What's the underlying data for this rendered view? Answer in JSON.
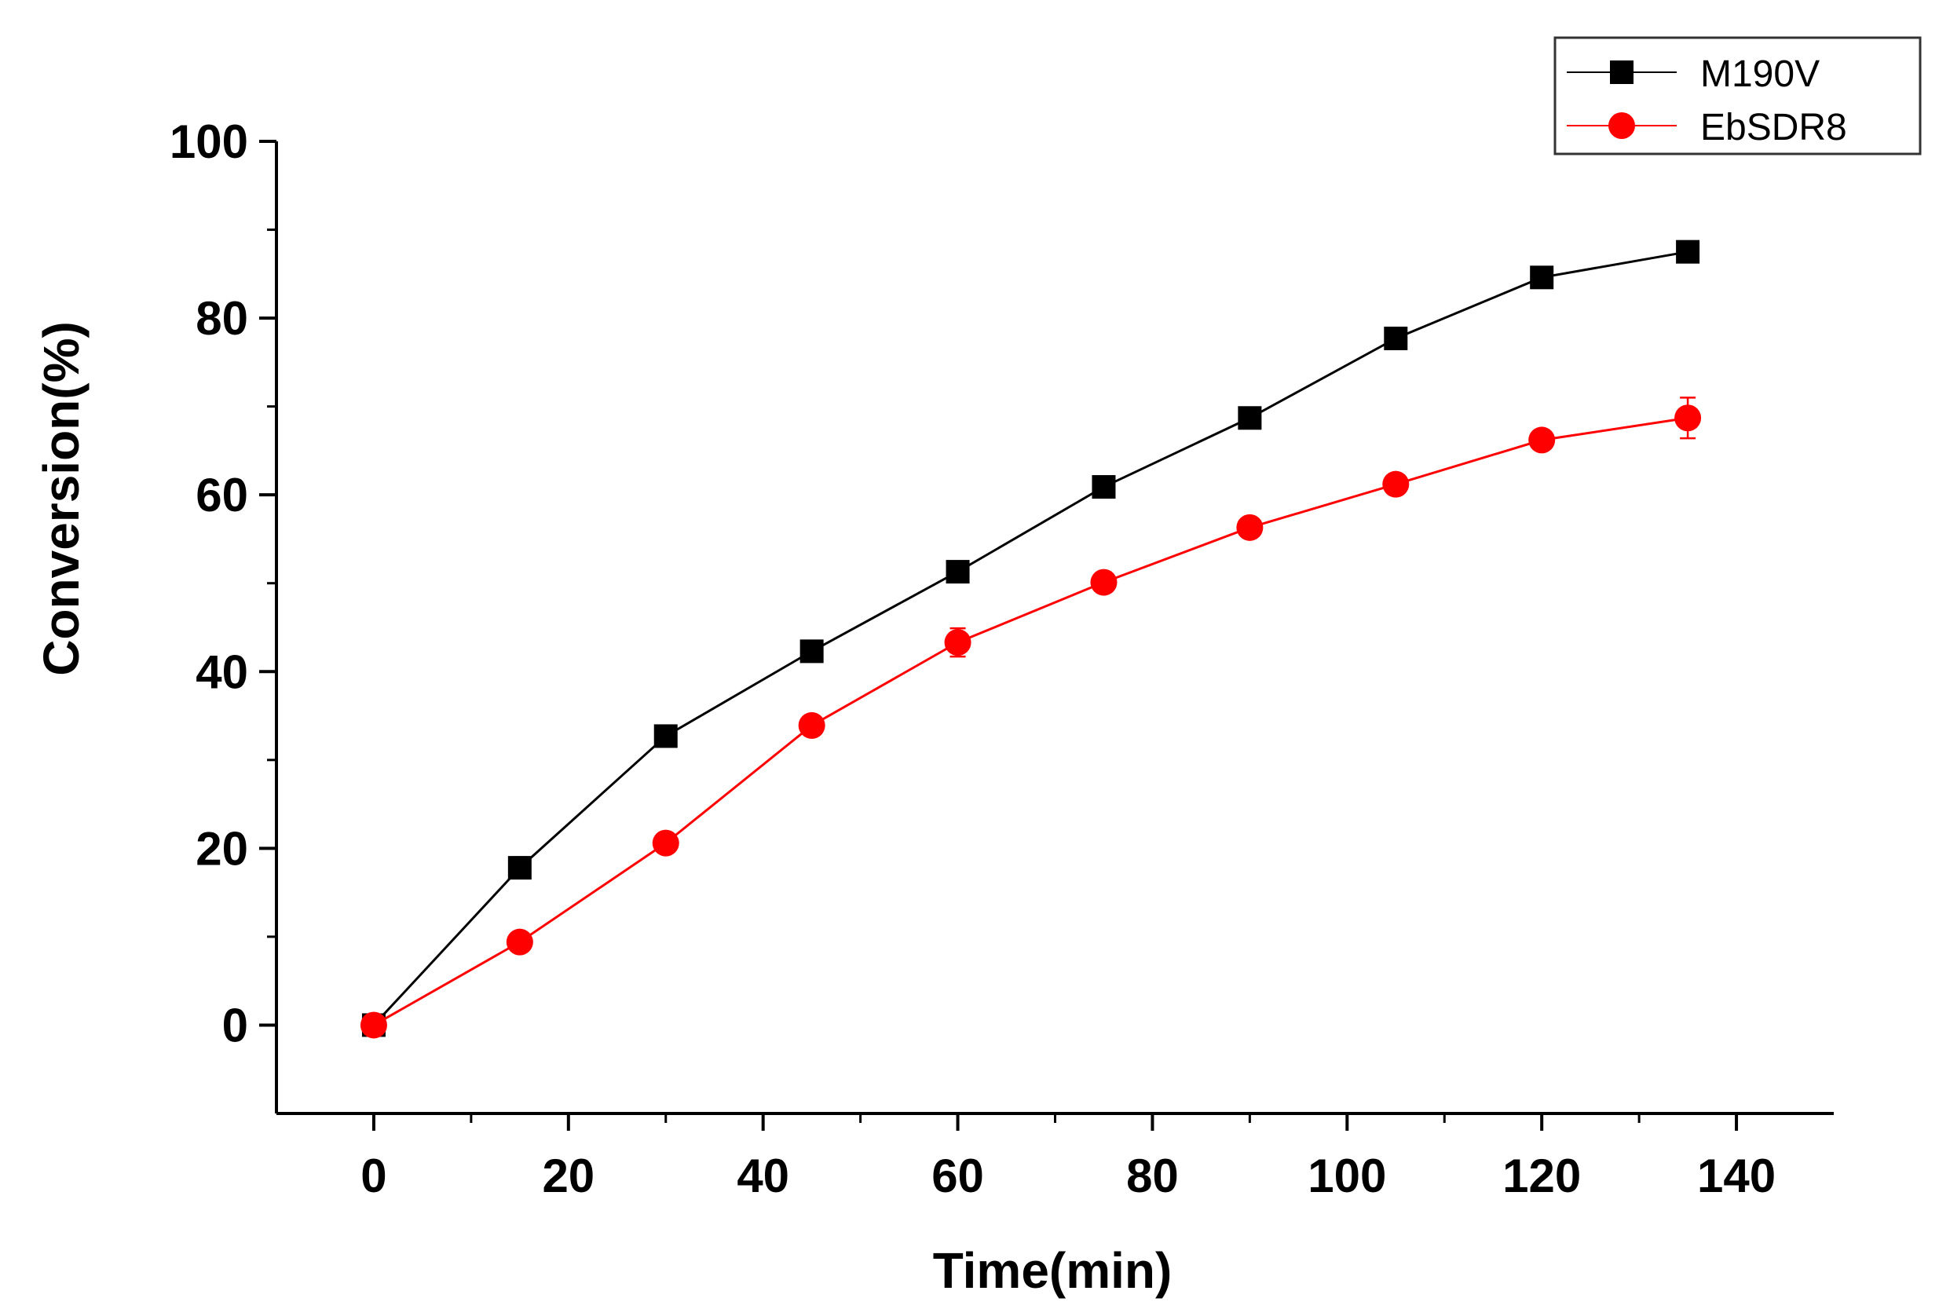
{
  "chart_data": {
    "type": "line",
    "title": "",
    "xlabel": "Time(min)",
    "ylabel": "Conversion(%)",
    "xlim": [
      -10,
      150
    ],
    "ylim": [
      -10,
      100
    ],
    "x_ticks": [
      0,
      20,
      40,
      60,
      80,
      100,
      120,
      140
    ],
    "y_ticks": [
      0,
      20,
      40,
      60,
      80,
      100
    ],
    "grid": false,
    "legend_position": "top-right",
    "x": [
      0,
      15,
      30,
      45,
      60,
      75,
      90,
      105,
      120,
      135
    ],
    "series": [
      {
        "name": "M190V",
        "color": "#000000",
        "marker": "square",
        "values": [
          0,
          17.8,
          32.7,
          42.3,
          51.3,
          60.9,
          68.7,
          77.7,
          84.6,
          87.5
        ],
        "errors": [
          0,
          1.2,
          0.8,
          0.8,
          0.9,
          0.7,
          1.0,
          0.9,
          0.7,
          0.6
        ]
      },
      {
        "name": "EbSDR8",
        "color": "#ff0000",
        "marker": "circle",
        "values": [
          0,
          9.4,
          20.6,
          33.9,
          43.3,
          50.1,
          56.3,
          61.2,
          66.2,
          68.7
        ],
        "errors": [
          0,
          0.7,
          0.8,
          0.9,
          1.6,
          0.8,
          0.8,
          0.8,
          0.8,
          2.3
        ]
      }
    ]
  }
}
